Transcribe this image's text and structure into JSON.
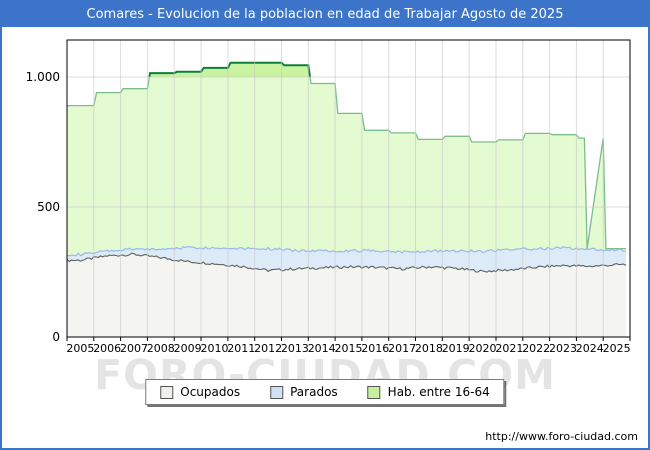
{
  "window": {
    "title": "Comares - Evolucion de la poblacion en edad de Trabajar Agosto de 2025"
  },
  "watermark": "FORO-CIUDAD.COM",
  "footer": {
    "url": "http://www.foro-ciudad.com"
  },
  "colors": {
    "title_bar": "#3B74C8",
    "outer_border": "#3B74C8",
    "gridline": "#C9C9C9",
    "plot_border": "#000000",
    "watermark": "#E4E4E4"
  },
  "chart_data": {
    "type": "area",
    "title": "Comares - Evolucion de la poblacion en edad de Trabajar Agosto de 2025",
    "xlabel": "",
    "ylabel": "",
    "x_range": [
      2005,
      2026
    ],
    "x_data_start": 2005.0,
    "x_data_end": 2025.85,
    "ylim": [
      0,
      1142
    ],
    "grid": true,
    "legend_position": "bottom-center",
    "yticks": [
      {
        "value": 0,
        "label": "0"
      },
      {
        "value": 500,
        "label": "500"
      },
      {
        "value": 1000,
        "label": "1.000"
      }
    ],
    "years": [
      2005,
      2006,
      2007,
      2008,
      2009,
      2010,
      2011,
      2012,
      2013,
      2014,
      2015,
      2016,
      2017,
      2018,
      2019,
      2020,
      2021,
      2022,
      2023,
      2024,
      2025
    ],
    "x_tick_labels": [
      "2005",
      "2006",
      "2007",
      "2008",
      "2009",
      "2010",
      "2011",
      "2012",
      "2013",
      "2014",
      "2015",
      "2016",
      "2017",
      "2018",
      "2019",
      "2020",
      "2021",
      "2022",
      "2023",
      "2024",
      "2025"
    ],
    "series": [
      {
        "name": "Ocupados",
        "render": "monthly-wiggle",
        "stacked_on": null,
        "line_color": "#606060",
        "fill_color": "#F4F4F1",
        "legend_fill": "#F0F0ED",
        "noise_amplitude": 5,
        "annual_values": [
          295,
          312,
          318,
          305,
          290,
          282,
          272,
          256,
          262,
          266,
          270,
          268,
          262,
          270,
          264,
          252,
          258,
          268,
          275,
          272,
          278
        ]
      },
      {
        "name": "Parados",
        "render": "monthly-wiggle",
        "stacked_on": "Ocupados",
        "line_color": "#9AB9E8",
        "fill_color": "#DDEAF8",
        "legend_fill": "#CFE2F5",
        "noise_amplitude": 5,
        "annual_values": [
          22,
          18,
          20,
          32,
          55,
          60,
          70,
          84,
          70,
          66,
          62,
          65,
          66,
          60,
          68,
          78,
          80,
          70,
          68,
          66,
          55
        ]
      },
      {
        "name": "Hab. entre 16-64",
        "render": "annual-steps",
        "stacked_on": null,
        "line_color": "#7BBD8D",
        "line_color_above_1000": "#0E7E3C",
        "fill_color": "#E4FBD2",
        "fill_color_above_1000": "#C9F3A0",
        "highlight_threshold": 1000,
        "legend_fill": "#C6F09E",
        "annual_values": [
          890,
          940,
          955,
          1015,
          1020,
          1035,
          1055,
          1055,
          1045,
          975,
          860,
          795,
          785,
          760,
          772,
          750,
          758,
          783,
          778,
          765,
          340
        ],
        "break_at": 2024.3,
        "value_after_break": 340
      }
    ]
  }
}
